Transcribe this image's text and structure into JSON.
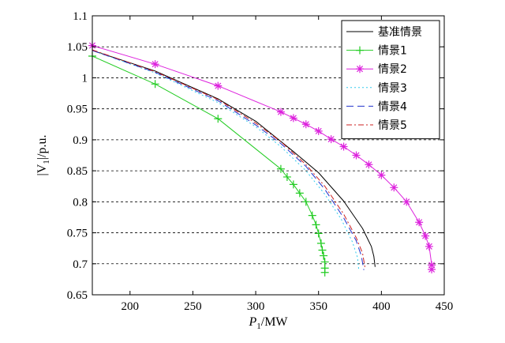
{
  "chart_data": {
    "type": "line",
    "title": "",
    "xlabel_main": "P",
    "xlabel_sub": "1",
    "xlabel_unit": "/MW",
    "ylabel_main": "|V",
    "ylabel_sub": "1",
    "ylabel_unit": "|/p.u.",
    "xlim": [
      170,
      450
    ],
    "ylim": [
      0.65,
      1.1
    ],
    "x_ticks": [
      200,
      250,
      300,
      350,
      400,
      450
    ],
    "x_tick_labels": [
      "200",
      "250",
      "300",
      "350",
      "400",
      "450"
    ],
    "y_ticks": [
      0.65,
      0.7,
      0.75,
      0.8,
      0.85,
      0.9,
      0.95,
      1.0,
      1.05,
      1.1
    ],
    "y_tick_labels": [
      "0.65",
      "0.7",
      "0.75",
      "0.8",
      "0.85",
      "0.9",
      "0.95",
      "1",
      "1.05",
      "1.1"
    ],
    "grid": "horizontal-dashed",
    "legend_position": "top-right",
    "series": [
      {
        "name": "基准情景",
        "color": "#000000",
        "dash": "",
        "marker": "none",
        "points": [
          [
            170,
            1.044
          ],
          [
            220,
            1.011
          ],
          [
            270,
            0.966
          ],
          [
            300,
            0.93
          ],
          [
            330,
            0.881
          ],
          [
            350,
            0.847
          ],
          [
            370,
            0.801
          ],
          [
            385,
            0.757
          ],
          [
            392,
            0.728
          ],
          [
            394,
            0.712
          ],
          [
            395,
            0.695
          ]
        ]
      },
      {
        "name": "情景1",
        "color": "#22cc22",
        "dash": "",
        "marker": "plus",
        "points": [
          [
            170,
            1.035
          ],
          [
            220,
            0.99
          ],
          [
            270,
            0.934
          ],
          [
            320,
            0.853
          ],
          [
            325,
            0.84
          ],
          [
            330,
            0.828
          ],
          [
            335,
            0.814
          ],
          [
            340,
            0.8
          ],
          [
            345,
            0.778
          ],
          [
            348,
            0.763
          ],
          [
            350,
            0.749
          ],
          [
            352,
            0.733
          ],
          [
            353,
            0.722
          ],
          [
            354,
            0.713
          ],
          [
            355,
            0.703
          ],
          [
            355,
            0.693
          ],
          [
            355,
            0.686
          ]
        ]
      },
      {
        "name": "情景2",
        "color": "#dd22dd",
        "dash": "",
        "marker": "star",
        "points": [
          [
            170,
            1.052
          ],
          [
            220,
            1.022
          ],
          [
            270,
            0.987
          ],
          [
            320,
            0.945
          ],
          [
            330,
            0.935
          ],
          [
            340,
            0.925
          ],
          [
            350,
            0.914
          ],
          [
            360,
            0.901
          ],
          [
            370,
            0.889
          ],
          [
            380,
            0.875
          ],
          [
            390,
            0.86
          ],
          [
            400,
            0.843
          ],
          [
            410,
            0.823
          ],
          [
            420,
            0.8
          ],
          [
            430,
            0.767
          ],
          [
            435,
            0.745
          ],
          [
            438,
            0.728
          ],
          [
            440,
            0.698
          ],
          [
            440,
            0.691
          ]
        ]
      },
      {
        "name": "情景3",
        "color": "#33ccee",
        "dash": "2,3",
        "marker": "none",
        "points": [
          [
            170,
            1.044
          ],
          [
            220,
            1.008
          ],
          [
            270,
            0.96
          ],
          [
            300,
            0.921
          ],
          [
            320,
            0.889
          ],
          [
            340,
            0.85
          ],
          [
            355,
            0.812
          ],
          [
            368,
            0.772
          ],
          [
            377,
            0.735
          ],
          [
            381,
            0.71
          ],
          [
            382,
            0.69
          ]
        ]
      },
      {
        "name": "情景4",
        "color": "#2233cc",
        "dash": "9,5",
        "marker": "none",
        "points": [
          [
            170,
            1.044
          ],
          [
            220,
            1.009
          ],
          [
            270,
            0.963
          ],
          [
            300,
            0.924
          ],
          [
            320,
            0.894
          ],
          [
            340,
            0.857
          ],
          [
            355,
            0.82
          ],
          [
            370,
            0.774
          ],
          [
            380,
            0.737
          ],
          [
            384,
            0.713
          ],
          [
            386,
            0.69
          ]
        ]
      },
      {
        "name": "情景5",
        "color": "#cc2222",
        "dash": "7,3,2,3",
        "marker": "none",
        "points": [
          [
            170,
            1.045
          ],
          [
            220,
            1.01
          ],
          [
            270,
            0.965
          ],
          [
            300,
            0.927
          ],
          [
            320,
            0.897
          ],
          [
            340,
            0.86
          ],
          [
            355,
            0.825
          ],
          [
            370,
            0.78
          ],
          [
            380,
            0.742
          ],
          [
            385,
            0.717
          ],
          [
            387,
            0.693
          ]
        ]
      }
    ]
  }
}
